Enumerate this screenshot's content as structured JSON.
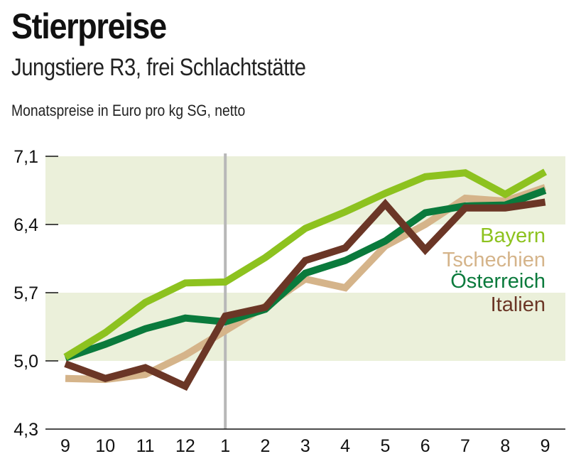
{
  "header": {
    "title": "Stierpreise",
    "subtitle": "Jungstiere R3, frei Schlachtstätte",
    "unit": "Monatspreise in Euro pro kg SG, netto"
  },
  "chart_data": {
    "type": "line",
    "title": "Stierpreise",
    "subtitle": "Jungstiere R3, frei Schlachtstätte",
    "ylabel": "Monatspreise in Euro pro kg SG, netto",
    "xlabel": "",
    "categories": [
      "9",
      "10",
      "11",
      "12",
      "1",
      "2",
      "3",
      "4",
      "5",
      "6",
      "7",
      "8",
      "9"
    ],
    "ylim": [
      4.3,
      7.1
    ],
    "yticks": [
      "4,3",
      "5,0",
      "5,7",
      "6,4",
      "7,1"
    ],
    "ytick_values": [
      4.3,
      5.0,
      5.7,
      6.4,
      7.1
    ],
    "shaded_bands": [
      [
        5.0,
        5.7
      ],
      [
        6.4,
        7.1
      ]
    ],
    "year_divider_at": "1",
    "legend_position": "right",
    "series": [
      {
        "name": "Bayern",
        "color": "#8dc21f",
        "values": [
          5.04,
          5.29,
          5.6,
          5.8,
          5.81,
          6.06,
          6.36,
          6.53,
          6.72,
          6.89,
          6.93,
          6.71,
          6.94
        ]
      },
      {
        "name": "Tschechien",
        "color": "#d5b48a",
        "values": [
          4.82,
          4.81,
          4.86,
          5.06,
          5.31,
          5.56,
          5.84,
          5.75,
          6.18,
          6.4,
          6.67,
          6.64,
          6.78
        ]
      },
      {
        "name": "Österreich",
        "color": "#0a7a3c",
        "values": [
          5.03,
          5.17,
          5.33,
          5.44,
          5.4,
          5.53,
          5.9,
          6.03,
          6.23,
          6.52,
          6.59,
          6.6,
          6.75
        ]
      },
      {
        "name": "Italien",
        "color": "#6b3626",
        "values": [
          4.97,
          4.82,
          4.93,
          4.74,
          5.46,
          5.55,
          6.03,
          6.16,
          6.61,
          6.14,
          6.57,
          6.57,
          6.63
        ]
      }
    ]
  },
  "colors": {
    "band": "#ebf0da",
    "divider": "#b8b8b8",
    "axis": "#111111"
  }
}
